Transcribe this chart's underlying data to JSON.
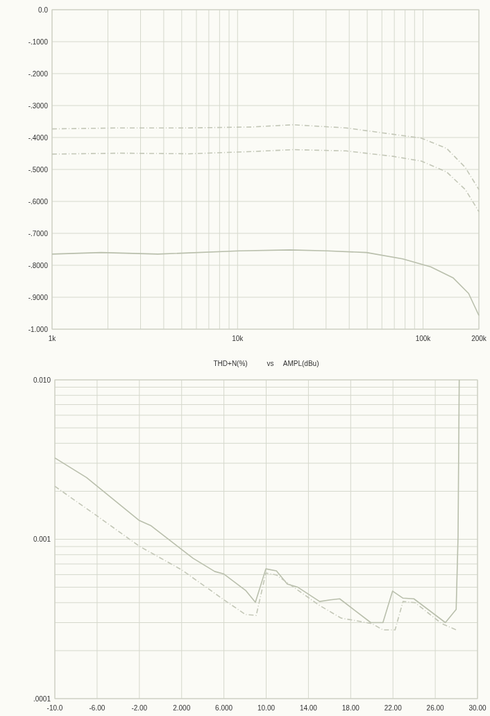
{
  "chart_data": [
    {
      "type": "line",
      "log": "x",
      "grid": true,
      "xlim": [
        1000,
        200000
      ],
      "xticks": [
        {
          "value": 1000,
          "label": "1k"
        },
        {
          "value": 10000,
          "label": "10k"
        },
        {
          "value": 100000,
          "label": "100k"
        },
        {
          "value": 200000,
          "label": "200k"
        }
      ],
      "ylim": [
        -1,
        0
      ],
      "yticks": [
        {
          "value": 0,
          "label": "0.0"
        },
        {
          "value": -0.1,
          "label": "-.1000"
        },
        {
          "value": -0.2,
          "label": "-.2000"
        },
        {
          "value": -0.3,
          "label": "-.3000"
        },
        {
          "value": -0.4,
          "label": "-.4000"
        },
        {
          "value": -0.5,
          "label": "-.5000"
        },
        {
          "value": -0.6,
          "label": "-.6000"
        },
        {
          "value": -0.7,
          "label": "-.7000"
        },
        {
          "value": -0.8,
          "label": "-.8000"
        },
        {
          "value": -0.9,
          "label": "-.9000"
        },
        {
          "value": -1,
          "label": "-1.000"
        }
      ],
      "series": [
        {
          "color": "#b9bfac",
          "line_style": "solid",
          "x": [
            1000,
            1840,
            3720,
            10200,
            19100,
            30500,
            49600,
            77600,
            110000,
            145000,
            176000,
            200000
          ],
          "values": [
            -0.765,
            -0.76,
            -0.765,
            -0.755,
            -0.752,
            -0.755,
            -0.76,
            -0.78,
            -0.805,
            -0.839,
            -0.888,
            -0.957
          ]
        },
        {
          "color": "#c3c7b7",
          "line_style": "dashed",
          "x": [
            1000,
            2330,
            5490,
            12000,
            19900,
            38500,
            69000,
            98000,
            134000,
            169000,
            200000
          ],
          "values": [
            -0.373,
            -0.37,
            -0.37,
            -0.367,
            -0.36,
            -0.37,
            -0.39,
            -0.402,
            -0.434,
            -0.494,
            -0.563
          ]
        },
        {
          "color": "#c3c7b7",
          "line_style": "dashed",
          "x": [
            1000,
            2330,
            5490,
            12000,
            19900,
            38500,
            69000,
            98000,
            134000,
            169000,
            200000
          ],
          "values": [
            -0.452,
            -0.449,
            -0.451,
            -0.444,
            -0.438,
            -0.442,
            -0.459,
            -0.474,
            -0.508,
            -0.563,
            -0.632
          ]
        }
      ]
    },
    {
      "type": "line",
      "title": "THD+N(%)          vs     AMPL(dBu)",
      "log": "y",
      "grid": true,
      "xlim": [
        -10,
        30
      ],
      "xticks": [
        {
          "value": -10,
          "label": "-10.0"
        },
        {
          "value": -6,
          "label": "-6.00"
        },
        {
          "value": -2,
          "label": "-2.00"
        },
        {
          "value": 2,
          "label": "2.000"
        },
        {
          "value": 6,
          "label": "6.000"
        },
        {
          "value": 10,
          "label": "10.00"
        },
        {
          "value": 14,
          "label": "14.00"
        },
        {
          "value": 18,
          "label": "18.00"
        },
        {
          "value": 22,
          "label": "22.00"
        },
        {
          "value": 26,
          "label": "26.00"
        },
        {
          "value": 30,
          "label": "30.00"
        }
      ],
      "ylim": [
        0.0001,
        0.01
      ],
      "yticks": [
        {
          "value": 0.01,
          "label": "0.010"
        },
        {
          "value": 0.001,
          "label": "0.001"
        },
        {
          "value": 0.0001,
          "label": ".0001"
        }
      ],
      "series": [
        {
          "color": "#b9bfac",
          "line_style": "solid",
          "x": [
            -10,
            -7,
            -2,
            -0.93,
            3.08,
            5.13,
            6,
            8.05,
            8.98,
            9.97,
            10.97,
            12,
            13,
            15.06,
            16.08,
            16.96,
            19.9,
            21.05,
            21.96,
            22.95,
            23.98,
            26.96,
            27.98,
            28.16,
            28.27
          ],
          "values": [
            0.00324,
            0.00244,
            0.00131,
            0.00122,
            0.00076,
            0.000628,
            0.000605,
            0.000478,
            0.000402,
            0.000652,
            0.000634,
            0.000524,
            0.0005,
            0.000407,
            0.000417,
            0.000423,
            0.0003,
            0.0003,
            0.000473,
            0.000427,
            0.000423,
            0.0003,
            0.000363,
            0.00104,
            0.01
          ]
        },
        {
          "color": "#c3c7b7",
          "line_style": "dashed",
          "x": [
            -10,
            -6,
            -2,
            2,
            6,
            8.05,
            9.06,
            9.97,
            10.97,
            12.47,
            15.06,
            17.1,
            20,
            21.05,
            22.2,
            22.95,
            24.1,
            26.6,
            27.98
          ],
          "values": [
            0.00215,
            0.0014,
            0.000904,
            0.000643,
            0.000417,
            0.000337,
            0.000333,
            0.000614,
            0.000597,
            0.000507,
            0.000384,
            0.00032,
            0.000296,
            0.00027,
            0.00027,
            0.000407,
            0.0004,
            0.000296,
            0.00027
          ]
        }
      ]
    }
  ]
}
